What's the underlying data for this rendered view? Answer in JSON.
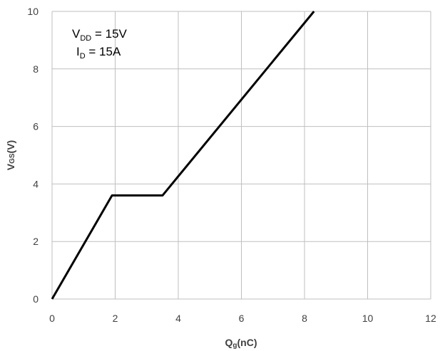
{
  "chart_data": {
    "type": "line",
    "title": "",
    "xlabel": "Qg(nC)",
    "ylabel": "VGS(V)",
    "xlim": [
      0,
      12
    ],
    "ylim": [
      0,
      10
    ],
    "x_ticks": [
      0,
      2,
      4,
      6,
      8,
      10,
      12
    ],
    "y_ticks": [
      0,
      2,
      4,
      6,
      8,
      10
    ],
    "grid": true,
    "series": [
      {
        "x": [
          0,
          1.9,
          3.5,
          8.3
        ],
        "y": [
          0,
          3.6,
          3.6,
          10
        ]
      }
    ],
    "annotations": {
      "vdd": {
        "main": "V",
        "sub": "DD",
        "rest": " = 15V"
      },
      "id": {
        "main": "I",
        "sub": "D",
        "rest": " = 15A"
      }
    },
    "colors": {
      "line": "#000000",
      "grid": "#bfbfbf",
      "text": "#404040"
    }
  }
}
